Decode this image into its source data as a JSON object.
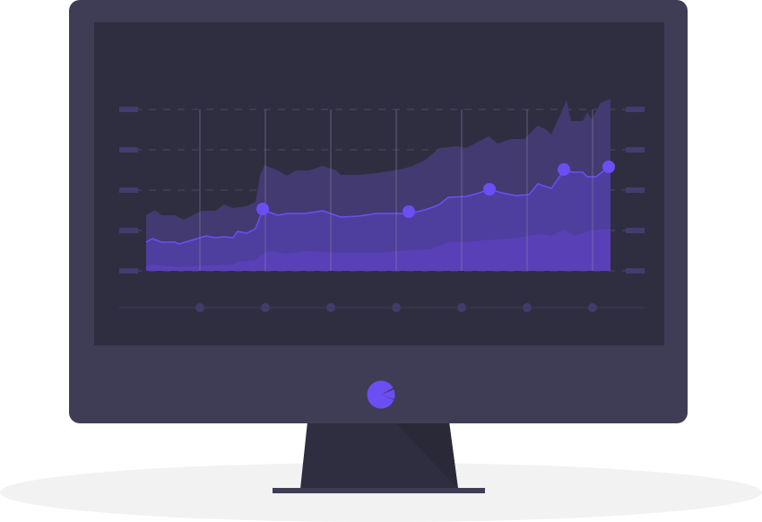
{
  "illustration": {
    "subject": "monitor-with-area-chart",
    "colors": {
      "monitor_body": "#3f3d56",
      "screen": "#2f2e41",
      "stand": "#2f2e41",
      "stand_shade": "#2a2937",
      "floor_shadow": "#f2f2f2",
      "accent": "#6c4ef5",
      "area_upper": "#433a71",
      "area_middle": "#4e3f9f",
      "area_lower": "#5a40b6",
      "grid_marks": "#433c6e",
      "grid_lines": "#4a4860"
    },
    "logo_icon": "pie-chart-icon",
    "highlighted_points": 5,
    "x_axis_dots": 7,
    "y_gridlines": 5
  }
}
